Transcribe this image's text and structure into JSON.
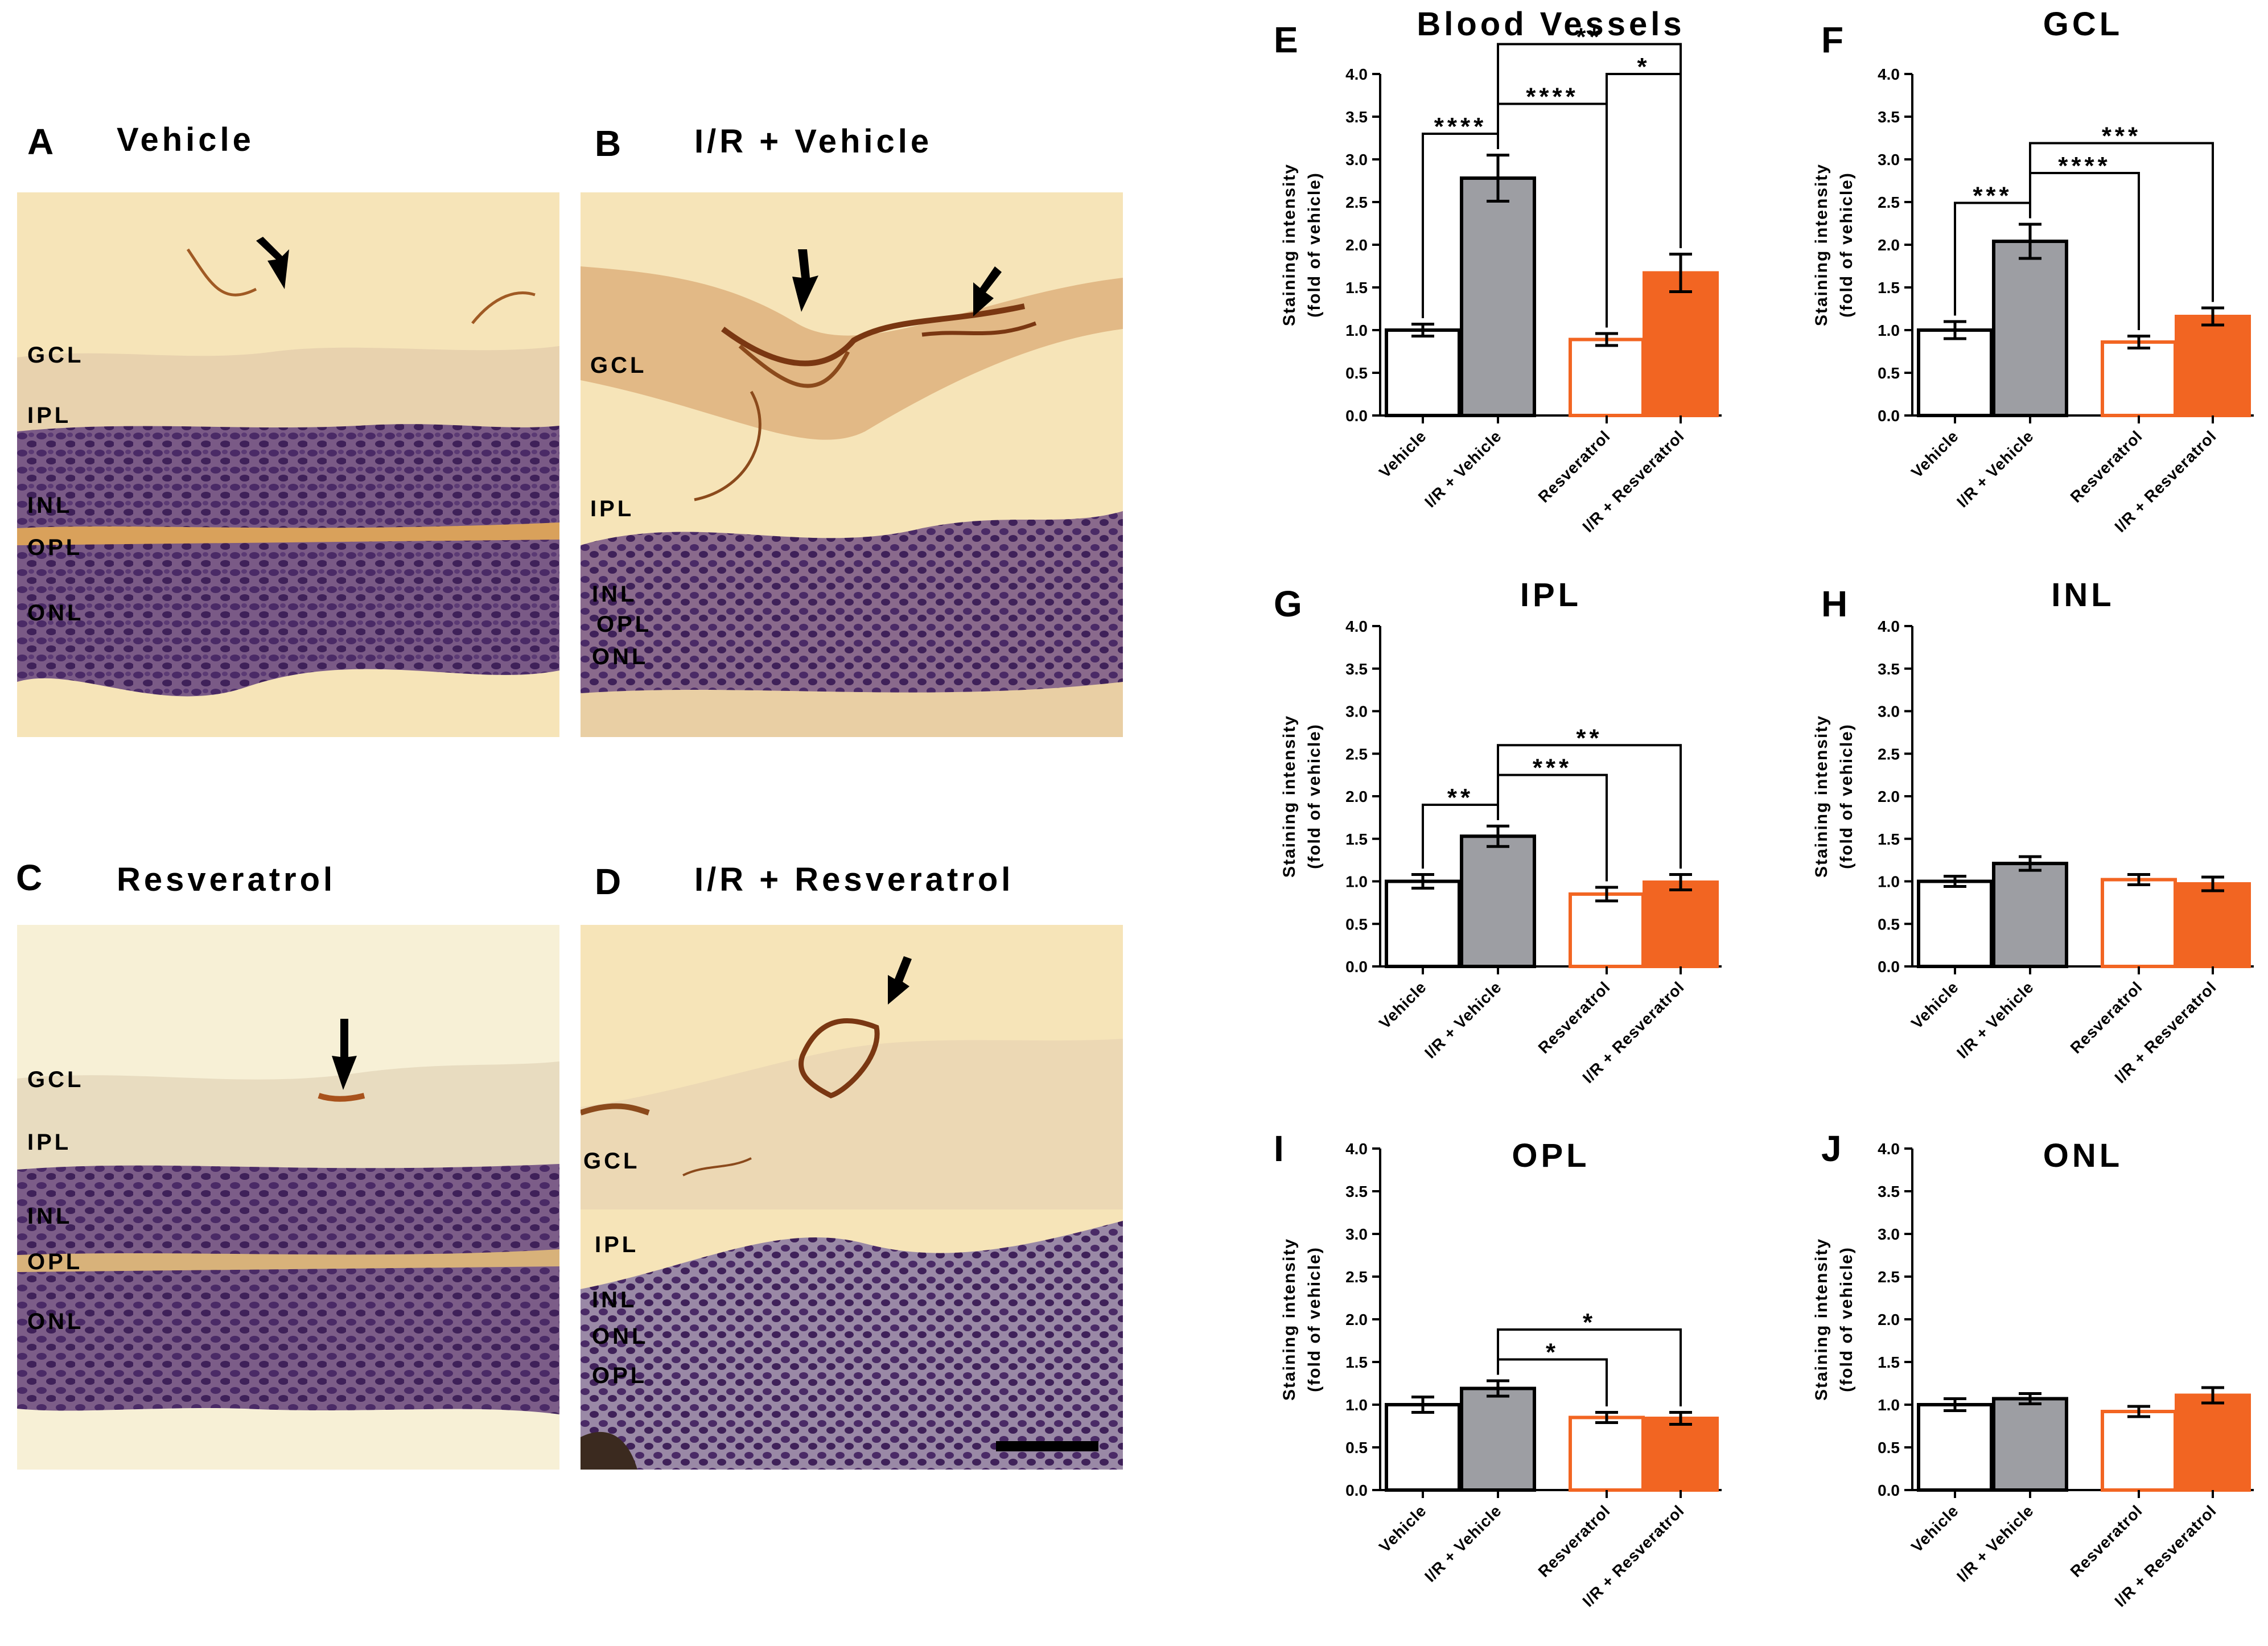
{
  "image_panels": [
    {
      "letter": "A",
      "title": "Vehicle",
      "layers": [
        "GCL",
        "IPL",
        "INL",
        "OPL",
        "ONL"
      ]
    },
    {
      "letter": "B",
      "title": "I/R + Vehicle",
      "layers": [
        "GCL",
        "IPL",
        "INL",
        "OPL",
        "ONL"
      ]
    },
    {
      "letter": "C",
      "title": "Resveratrol",
      "layers": [
        "GCL",
        "IPL",
        "INL",
        "OPL",
        "ONL"
      ]
    },
    {
      "letter": "D",
      "title": "I/R + Resveratrol",
      "layers": [
        "GCL",
        "IPL",
        "INL",
        "ONL",
        "OPL"
      ]
    }
  ],
  "colors": {
    "tissue_background": "#f6e4b8",
    "nuclei": "#4a2a66",
    "staining": "#8b4a1c",
    "bar_vehicle": "#ffffff",
    "bar_ir_vehicle": "#9d9ea3",
    "bar_resveratrol_edge": "#f26522",
    "bar_ir_resveratrol": "#f26522"
  },
  "chart_data": [
    {
      "letter": "E",
      "type": "bar",
      "title": "Blood Vessels",
      "categories": [
        "Vehicle",
        "I/R + Vehicle",
        "Resveratrol",
        "I/R + Resveratrol"
      ],
      "values": [
        1.0,
        2.78,
        0.89,
        1.67
      ],
      "errors": [
        0.07,
        0.27,
        0.07,
        0.22
      ],
      "ylabel": [
        "Staining intensity",
        "(fold of vehicle)"
      ],
      "ylim": [
        0,
        4.0
      ],
      "yticks": [
        "0.0",
        "0.5",
        "1.0",
        "1.5",
        "2.0",
        "2.5",
        "3.0",
        "3.5",
        "4.0"
      ],
      "brackets": [
        {
          "from": 0,
          "to": 1,
          "label": "****"
        },
        {
          "from": 1,
          "to": 2,
          "label": "****"
        },
        {
          "from": 1,
          "to": 3,
          "label": "**"
        },
        {
          "from": 2,
          "to": 3,
          "label": "*"
        }
      ]
    },
    {
      "letter": "F",
      "type": "bar",
      "title": "GCL",
      "categories": [
        "Vehicle",
        "I/R + Vehicle",
        "Resveratrol",
        "I/R + Resveratrol"
      ],
      "values": [
        1.0,
        2.04,
        0.86,
        1.16
      ],
      "errors": [
        0.1,
        0.2,
        0.07,
        0.1
      ],
      "ylabel": [
        "Staining intensity",
        "(fold of vehicle)"
      ],
      "ylim": [
        0,
        4.0
      ],
      "yticks": [
        "0.0",
        "0.5",
        "1.0",
        "1.5",
        "2.0",
        "2.5",
        "3.0",
        "3.5",
        "4.0"
      ],
      "brackets": [
        {
          "from": 0,
          "to": 1,
          "label": "***"
        },
        {
          "from": 1,
          "to": 2,
          "label": "****"
        },
        {
          "from": 1,
          "to": 3,
          "label": "***"
        }
      ]
    },
    {
      "letter": "G",
      "type": "bar",
      "title": "IPL",
      "categories": [
        "Vehicle",
        "I/R + Vehicle",
        "Resveratrol",
        "I/R + Resveratrol"
      ],
      "values": [
        1.0,
        1.53,
        0.85,
        0.99
      ],
      "errors": [
        0.08,
        0.12,
        0.08,
        0.09
      ],
      "ylabel": [
        "Staining intensity",
        "(fold of vehicle)"
      ],
      "ylim": [
        0,
        4.0
      ],
      "yticks": [
        "0.0",
        "0.5",
        "1.0",
        "1.5",
        "2.0",
        "2.5",
        "3.0",
        "3.5",
        "4.0"
      ],
      "brackets": [
        {
          "from": 0,
          "to": 1,
          "label": "**"
        },
        {
          "from": 1,
          "to": 2,
          "label": "***"
        },
        {
          "from": 1,
          "to": 3,
          "label": "**"
        }
      ]
    },
    {
      "letter": "H",
      "type": "bar",
      "title": "INL",
      "categories": [
        "Vehicle",
        "I/R + Vehicle",
        "Resveratrol",
        "I/R + Resveratrol"
      ],
      "values": [
        1.0,
        1.21,
        1.02,
        0.97
      ],
      "errors": [
        0.06,
        0.08,
        0.06,
        0.08
      ],
      "ylabel": [
        "Staining intensity",
        "(fold of vehicle)"
      ],
      "ylim": [
        0,
        4.0
      ],
      "yticks": [
        "0.0",
        "0.5",
        "1.0",
        "1.5",
        "2.0",
        "2.5",
        "3.0",
        "3.5",
        "4.0"
      ],
      "brackets": []
    },
    {
      "letter": "I",
      "type": "bar",
      "title": "OPL",
      "categories": [
        "Vehicle",
        "I/R + Vehicle",
        "Resveratrol",
        "I/R + Resveratrol"
      ],
      "values": [
        1.0,
        1.19,
        0.85,
        0.84
      ],
      "errors": [
        0.09,
        0.09,
        0.06,
        0.07
      ],
      "ylabel": [
        "Staining intensity",
        "(fold of vehicle)"
      ],
      "ylim": [
        0,
        4.0
      ],
      "yticks": [
        "0.0",
        "0.5",
        "1.0",
        "1.5",
        "2.0",
        "2.5",
        "3.0",
        "3.5",
        "4.0"
      ],
      "brackets": [
        {
          "from": 1,
          "to": 2,
          "label": "*"
        },
        {
          "from": 1,
          "to": 3,
          "label": "*"
        }
      ]
    },
    {
      "letter": "J",
      "type": "bar",
      "title": "ONL",
      "categories": [
        "Vehicle",
        "I/R + Vehicle",
        "Resveratrol",
        "I/R + Resveratrol"
      ],
      "values": [
        1.0,
        1.07,
        0.92,
        1.11
      ],
      "errors": [
        0.07,
        0.06,
        0.06,
        0.09
      ],
      "ylabel": [
        "Staining intensity",
        "(fold of vehicle)"
      ],
      "ylim": [
        0,
        4.0
      ],
      "yticks": [
        "0.0",
        "0.5",
        "1.0",
        "1.5",
        "2.0",
        "2.5",
        "3.0",
        "3.5",
        "4.0"
      ],
      "brackets": []
    }
  ]
}
